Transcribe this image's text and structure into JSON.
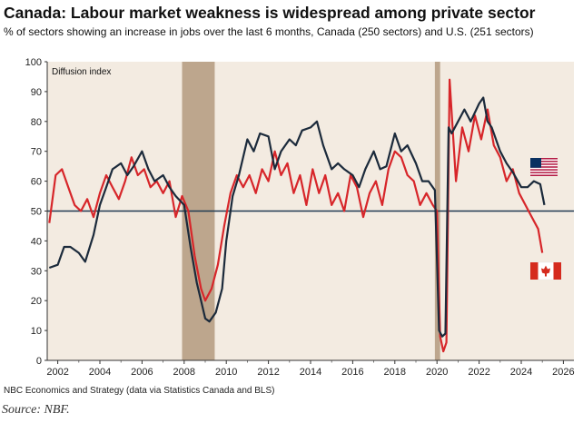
{
  "title": "Canada: Labour market weakness is widespread among private sector",
  "subtitle": "% of sectors showing an increase in jobs over the last 6 months, Canada (250 sectors) and U.S. (251 sectors)",
  "footnote": "NBC Economics and Strategy (data via Statistics Canada and BLS)",
  "source": "Source: NBF.",
  "colors": {
    "canada": "#d7262a",
    "us": "#1b2a3b",
    "recession": "#bda68d",
    "plot_bg": "#f3ebe1",
    "reference_line": "#1f3a52"
  },
  "chart_data": {
    "type": "line",
    "ylabel": "Diffusion index",
    "xlim": [
      2001.5,
      2026.5
    ],
    "ylim": [
      0,
      100
    ],
    "x_ticks": [
      2002,
      2004,
      2006,
      2008,
      2010,
      2012,
      2014,
      2016,
      2018,
      2020,
      2022,
      2024,
      2026
    ],
    "y_ticks": [
      0,
      10,
      20,
      30,
      40,
      50,
      60,
      70,
      80,
      90,
      100
    ],
    "reference_line": 50,
    "recession_bands": [
      [
        2007.9,
        2009.45
      ],
      [
        2019.9,
        2020.15
      ]
    ],
    "legend": [
      {
        "name": "U.S.",
        "icon": "us-flag-icon",
        "color": "#1b2a3b"
      },
      {
        "name": "Canada",
        "icon": "canada-flag-icon",
        "color": "#d7262a"
      }
    ],
    "series": [
      {
        "name": "U.S.",
        "color": "#1b2a3b",
        "x": [
          2001.6,
          2002.0,
          2002.3,
          2002.6,
          2003.0,
          2003.3,
          2003.7,
          2004.0,
          2004.3,
          2004.6,
          2005.0,
          2005.3,
          2005.6,
          2006.0,
          2006.3,
          2006.6,
          2007.0,
          2007.3,
          2007.6,
          2008.0,
          2008.3,
          2008.6,
          2008.8,
          2009.0,
          2009.2,
          2009.5,
          2009.8,
          2010.0,
          2010.3,
          2010.6,
          2011.0,
          2011.3,
          2011.6,
          2012.0,
          2012.3,
          2012.6,
          2013.0,
          2013.3,
          2013.6,
          2014.0,
          2014.3,
          2014.6,
          2015.0,
          2015.3,
          2015.6,
          2016.0,
          2016.3,
          2016.6,
          2017.0,
          2017.3,
          2017.6,
          2018.0,
          2018.3,
          2018.6,
          2019.0,
          2019.3,
          2019.6,
          2019.9,
          2020.1,
          2020.25,
          2020.4,
          2020.55,
          2020.7,
          2021.0,
          2021.3,
          2021.6,
          2022.0,
          2022.2,
          2022.4,
          2022.6,
          2023.0,
          2023.3,
          2023.6,
          2024.0,
          2024.3,
          2024.6,
          2024.9,
          2025.1
        ],
        "values": [
          31,
          32,
          38,
          38,
          36,
          33,
          42,
          52,
          58,
          64,
          66,
          62,
          65,
          70,
          64,
          60,
          62,
          58,
          55,
          52,
          38,
          26,
          20,
          14,
          13,
          16,
          24,
          40,
          55,
          62,
          74,
          70,
          76,
          75,
          64,
          70,
          74,
          72,
          77,
          78,
          80,
          72,
          64,
          66,
          64,
          62,
          58,
          64,
          70,
          64,
          65,
          76,
          70,
          72,
          66,
          60,
          60,
          57,
          10,
          8,
          9,
          78,
          76,
          80,
          84,
          80,
          86,
          88,
          80,
          78,
          70,
          66,
          63,
          58,
          58,
          60,
          59,
          52
        ]
      },
      {
        "name": "Canada",
        "color": "#d7262a",
        "x": [
          2001.6,
          2001.9,
          2002.2,
          2002.5,
          2002.8,
          2003.1,
          2003.4,
          2003.7,
          2004.0,
          2004.3,
          2004.6,
          2004.9,
          2005.2,
          2005.5,
          2005.8,
          2006.1,
          2006.4,
          2006.7,
          2007.0,
          2007.3,
          2007.6,
          2007.9,
          2008.2,
          2008.5,
          2008.8,
          2009.0,
          2009.3,
          2009.6,
          2009.9,
          2010.2,
          2010.5,
          2010.8,
          2011.1,
          2011.4,
          2011.7,
          2012.0,
          2012.3,
          2012.6,
          2012.9,
          2013.2,
          2013.5,
          2013.8,
          2014.1,
          2014.4,
          2014.7,
          2015.0,
          2015.3,
          2015.6,
          2015.9,
          2016.2,
          2016.5,
          2016.8,
          2017.1,
          2017.4,
          2017.7,
          2018.0,
          2018.3,
          2018.6,
          2018.9,
          2019.2,
          2019.5,
          2019.8,
          2020.0,
          2020.15,
          2020.3,
          2020.45,
          2020.6,
          2020.9,
          2021.2,
          2021.5,
          2021.8,
          2022.1,
          2022.4,
          2022.7,
          2023.0,
          2023.3,
          2023.6,
          2023.9,
          2024.2,
          2024.5,
          2024.8,
          2025.0
        ],
        "values": [
          46,
          62,
          64,
          58,
          52,
          50,
          54,
          48,
          56,
          62,
          58,
          54,
          60,
          68,
          62,
          64,
          58,
          60,
          56,
          60,
          48,
          55,
          50,
          35,
          24,
          20,
          24,
          32,
          45,
          56,
          62,
          58,
          62,
          56,
          64,
          60,
          70,
          62,
          66,
          56,
          62,
          52,
          64,
          56,
          62,
          52,
          56,
          50,
          62,
          58,
          48,
          56,
          60,
          52,
          64,
          70,
          68,
          62,
          60,
          52,
          56,
          52,
          50,
          8,
          3,
          6,
          94,
          60,
          78,
          70,
          82,
          74,
          84,
          72,
          68,
          60,
          64,
          56,
          52,
          48,
          44,
          36
        ]
      }
    ]
  }
}
